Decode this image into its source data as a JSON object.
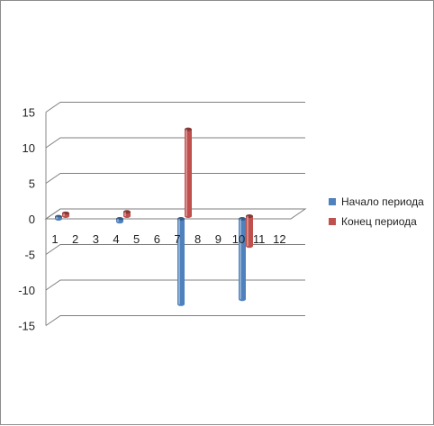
{
  "chart_data": {
    "type": "bar",
    "title": "",
    "xlabel": "",
    "ylabel": "",
    "categories": [
      "1",
      "2",
      "3",
      "4",
      "5",
      "6",
      "7",
      "8",
      "9",
      "10",
      "11",
      "12"
    ],
    "ylim": [
      -15,
      15
    ],
    "yticks": [
      15,
      10,
      5,
      0,
      -5,
      -10,
      -15
    ],
    "grid": true,
    "legend_position": "right",
    "series": [
      {
        "name": "Начало периода",
        "color": "#4f81bd",
        "values": [
          0.3,
          null,
          null,
          -0.4,
          null,
          null,
          -12,
          null,
          null,
          -11.3,
          null,
          null
        ]
      },
      {
        "name": "Конец периода",
        "color": "#c0504d",
        "values": [
          0.4,
          null,
          null,
          0.6,
          null,
          null,
          12.2,
          null,
          null,
          -4.2,
          null,
          null
        ]
      }
    ]
  }
}
